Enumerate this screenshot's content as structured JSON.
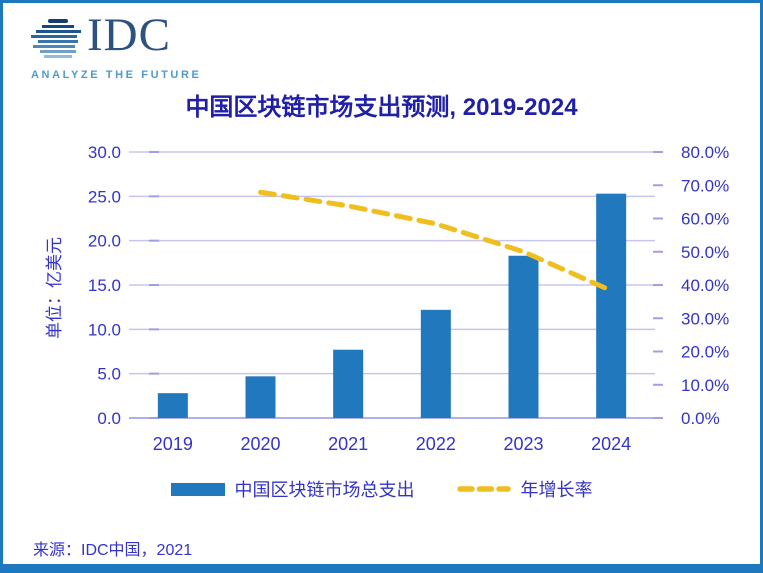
{
  "page": {
    "logo": {
      "brand": "IDC",
      "tagline": "ANALYZE THE FUTURE"
    },
    "title": "中国区块链市场支出预测, 2019-2024",
    "source": "来源：IDC中国，2021"
  },
  "colors": {
    "brand_border": "#1E78BE",
    "bar_blue": "#2278BC",
    "line_yellow": "#F0BE1E",
    "axis_blue": "#3333CC",
    "title_blue": "#1F1FA8",
    "grid": "#C5C5F0"
  },
  "chart_data": {
    "type": "bar+line combo",
    "title": "中国区块链市场支出预测, 2019-2024",
    "categories": [
      "2019",
      "2020",
      "2021",
      "2022",
      "2023",
      "2024"
    ],
    "series": [
      {
        "name": "中国区块链市场总支出",
        "type": "bar",
        "axis": "left",
        "color": "#2278BC",
        "values": [
          2.8,
          4.7,
          7.7,
          12.2,
          18.3,
          25.3
        ]
      },
      {
        "name": "年增长率",
        "type": "line",
        "axis": "right",
        "dashed": true,
        "color": "#F0BE1E",
        "values": [
          null,
          67.9,
          63.8,
          58.4,
          50.0,
          38.3
        ],
        "unit": "%"
      }
    ],
    "left_axis": {
      "title": "单位：亿美元",
      "min": 0,
      "max": 30,
      "step": 5,
      "tick_labels": [
        "0.0",
        "5.0",
        "10.0",
        "15.0",
        "20.0",
        "25.0",
        "30.0"
      ]
    },
    "right_axis": {
      "min": 0,
      "max": 80,
      "step": 10,
      "tick_labels": [
        "0.0%",
        "10.0%",
        "20.0%",
        "30.0%",
        "40.0%",
        "50.0%",
        "60.0%",
        "70.0%",
        "80.0%"
      ]
    },
    "grid": true,
    "legend_position": "bottom",
    "legend": [
      "中国区块链市场总支出",
      "年增长率"
    ]
  }
}
